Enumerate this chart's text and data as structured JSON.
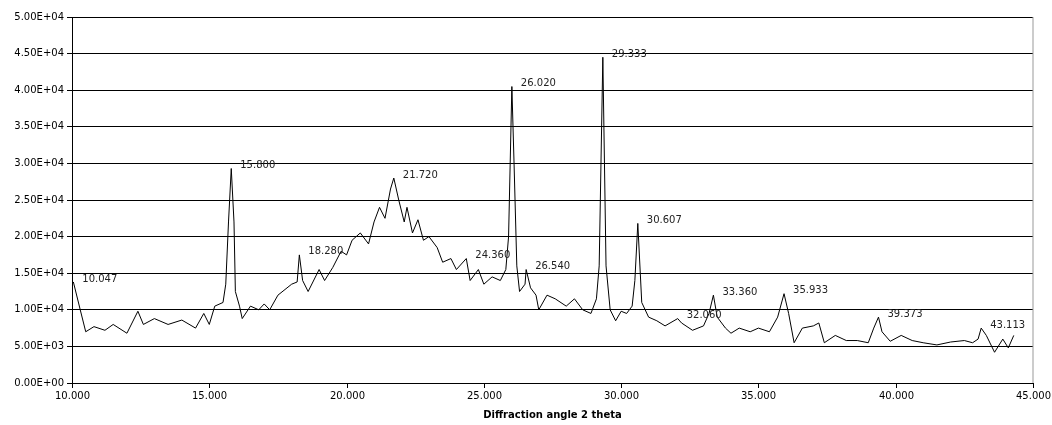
{
  "chart_data": {
    "type": "line",
    "xlabel": "Diffraction angle 2 theta",
    "x": [
      10.0,
      10.05,
      10.3,
      10.5,
      10.8,
      11.2,
      11.5,
      12.0,
      12.4,
      12.6,
      13.0,
      13.5,
      14.0,
      14.5,
      14.8,
      15.0,
      15.2,
      15.5,
      15.6,
      15.7,
      15.8,
      15.9,
      15.95,
      16.1,
      16.2,
      16.5,
      16.8,
      17.0,
      17.2,
      17.5,
      18.0,
      18.2,
      18.28,
      18.4,
      18.6,
      19.0,
      19.2,
      19.5,
      19.8,
      20.0,
      20.2,
      20.5,
      20.8,
      21.0,
      21.2,
      21.4,
      21.6,
      21.72,
      21.9,
      22.1,
      22.2,
      22.4,
      22.6,
      22.8,
      23.0,
      23.3,
      23.5,
      23.8,
      24.0,
      24.36,
      24.5,
      24.8,
      25.0,
      25.3,
      25.6,
      25.8,
      25.9,
      26.02,
      26.1,
      26.2,
      26.3,
      26.5,
      26.54,
      26.7,
      26.9,
      27.0,
      27.3,
      27.6,
      28.0,
      28.3,
      28.6,
      28.9,
      29.1,
      29.2,
      29.333,
      29.45,
      29.6,
      29.8,
      30.0,
      30.2,
      30.4,
      30.5,
      30.607,
      30.75,
      31.0,
      31.3,
      31.6,
      32.06,
      32.2,
      32.6,
      33.0,
      33.2,
      33.36,
      33.5,
      33.8,
      34.0,
      34.3,
      34.7,
      35.0,
      35.4,
      35.7,
      35.933,
      36.1,
      36.3,
      36.6,
      37.0,
      37.2,
      37.4,
      37.8,
      38.2,
      38.6,
      39.0,
      39.2,
      39.373,
      39.5,
      39.8,
      40.2,
      40.6,
      41.0,
      41.5,
      42.0,
      42.5,
      42.8,
      43.0,
      43.113,
      43.3,
      43.6,
      43.9,
      44.1,
      44.3
    ],
    "series": [
      {
        "color": "#000000",
        "values": [
          13500,
          13800,
          10000,
          7000,
          7700,
          7200,
          8000,
          6800,
          9800,
          8000,
          8800,
          8000,
          8600,
          7500,
          9500,
          8000,
          10500,
          11000,
          13500,
          22000,
          29300,
          22000,
          12500,
          10500,
          8800,
          10500,
          10000,
          10800,
          10000,
          12000,
          13500,
          13800,
          17500,
          14000,
          12500,
          15500,
          14000,
          15800,
          18000,
          17500,
          19500,
          20500,
          19000,
          22000,
          24000,
          22500,
          26500,
          28000,
          25000,
          22000,
          24000,
          20500,
          22300,
          19500,
          20000,
          18500,
          16500,
          17000,
          15500,
          17000,
          14000,
          15500,
          13500,
          14500,
          14000,
          15500,
          20000,
          40500,
          30000,
          16000,
          12500,
          13500,
          15500,
          13000,
          12000,
          10000,
          12000,
          11500,
          10500,
          11500,
          10000,
          9500,
          11500,
          16000,
          44500,
          16000,
          10000,
          8500,
          9800,
          9500,
          10500,
          14000,
          21800,
          11000,
          9000,
          8500,
          7800,
          8800,
          8200,
          7200,
          7800,
          9500,
          12000,
          9000,
          7500,
          6800,
          7500,
          7000,
          7500,
          7000,
          9000,
          12200,
          9500,
          5500,
          7500,
          7800,
          8200,
          5500,
          6500,
          5800,
          5800,
          5500,
          7500,
          9000,
          7000,
          5700,
          6500,
          5800,
          5500,
          5200,
          5600,
          5800,
          5500,
          6000,
          7500,
          6500,
          4200,
          6000,
          4800,
          6500
        ]
      }
    ],
    "xlim": [
      10,
      45
    ],
    "xticks": [
      {
        "value": 10,
        "label": "10.000"
      },
      {
        "value": 15,
        "label": "15.000"
      },
      {
        "value": 20,
        "label": "20.000"
      },
      {
        "value": 25,
        "label": "25.000"
      },
      {
        "value": 30,
        "label": "30.000"
      },
      {
        "value": 35,
        "label": "35.000"
      },
      {
        "value": 40,
        "label": "40.000"
      },
      {
        "value": 45,
        "label": "45.000"
      }
    ],
    "ylim": [
      0,
      50000
    ],
    "yticks": [
      {
        "value": 0,
        "label": "0.00E+00"
      },
      {
        "value": 5000,
        "label": "5.00E+03"
      },
      {
        "value": 10000,
        "label": "1.00E+04"
      },
      {
        "value": 15000,
        "label": "1.50E+04"
      },
      {
        "value": 20000,
        "label": "2.00E+04"
      },
      {
        "value": 25000,
        "label": "2.50E+04"
      },
      {
        "value": 30000,
        "label": "3.00E+04"
      },
      {
        "value": 35000,
        "label": "3.50E+04"
      },
      {
        "value": 40000,
        "label": "4.00E+04"
      },
      {
        "value": 45000,
        "label": "4.50E+04"
      },
      {
        "value": 50000,
        "label": "5.00E+04"
      }
    ],
    "grid": "y",
    "legend": false,
    "marker": "none",
    "line_style": "solid",
    "annotations": [
      {
        "text": "10.047",
        "x": 10.047,
        "y": 13800
      },
      {
        "text": "15.800",
        "x": 15.8,
        "y": 29300
      },
      {
        "text": "18.280",
        "x": 18.28,
        "y": 17500
      },
      {
        "text": "21.720",
        "x": 21.72,
        "y": 28000
      },
      {
        "text": "24.360",
        "x": 24.36,
        "y": 17000
      },
      {
        "text": "26.020",
        "x": 26.02,
        "y": 40500
      },
      {
        "text": "26.540",
        "x": 26.54,
        "y": 15500
      },
      {
        "text": "29.333",
        "x": 29.333,
        "y": 44500
      },
      {
        "text": "30.607",
        "x": 30.607,
        "y": 21800
      },
      {
        "text": "32.060",
        "x": 32.06,
        "y": 8800
      },
      {
        "text": "33.360",
        "x": 33.36,
        "y": 12000
      },
      {
        "text": "35.933",
        "x": 35.933,
        "y": 12200
      },
      {
        "text": "39.373",
        "x": 39.373,
        "y": 9000
      },
      {
        "text": "43.113",
        "x": 43.113,
        "y": 7500
      }
    ]
  }
}
